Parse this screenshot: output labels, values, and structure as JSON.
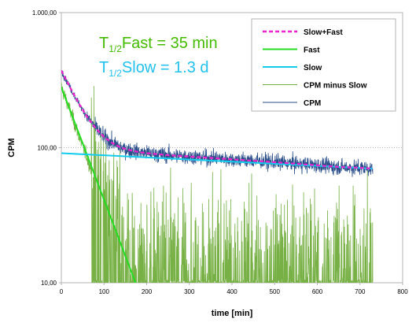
{
  "chart_data": {
    "type": "line",
    "xlabel": "time [min]",
    "ylabel": "CPM",
    "xlim": [
      0,
      800
    ],
    "ylim": [
      10,
      1000
    ],
    "y_scale": "log",
    "x_ticks": [
      "0",
      "100",
      "200",
      "300",
      "400",
      "500",
      "600",
      "700",
      "800"
    ],
    "y_ticks": [
      {
        "value": 10,
        "label": "10,00"
      },
      {
        "value": 100,
        "label": "100,00"
      },
      {
        "value": 1000,
        "label": "1.000,00"
      }
    ],
    "horizontal_gridlines": [
      100,
      1000
    ],
    "legend_position": "top-right",
    "annotations": [
      {
        "base": "T",
        "sub": "1/2",
        "rest": "Fast = 35 min",
        "color": "#44bb00"
      },
      {
        "base": "T",
        "sub": "1/2",
        "rest": "Slow = 1.3 d",
        "color": "#22c1ee"
      }
    ],
    "series": [
      {
        "name": "Slow+Fast",
        "color": "#ee22cc",
        "style": "dashed",
        "x": [
          0,
          20,
          40,
          60,
          80,
          100,
          120,
          140,
          160,
          180,
          200,
          250,
          300,
          350,
          400,
          450,
          500,
          550,
          600,
          650,
          700,
          730
        ],
        "y": [
          373,
          281,
          215,
          170,
          140,
          120,
          108,
          100,
          96,
          93,
          91,
          88,
          86,
          84,
          82,
          80,
          78,
          76,
          74,
          72,
          71,
          70
        ]
      },
      {
        "name": "Fast",
        "color": "#22dd22",
        "style": "solid",
        "x": [
          0,
          175
        ],
        "y": [
          280,
          9.8
        ]
      },
      {
        "name": "Slow",
        "color": "#11ccee",
        "style": "solid",
        "x": [
          0,
          730
        ],
        "y": [
          91,
          70
        ]
      },
      {
        "name": "CPM minus Slow",
        "color": "#77b044",
        "style": "noisy",
        "x": [
          0,
          20,
          40,
          60,
          80,
          100,
          120,
          140,
          160,
          180,
          200,
          300,
          400,
          500,
          600,
          700,
          730
        ],
        "y": [
          282,
          190,
          125,
          85,
          55,
          35,
          24,
          18,
          14,
          12,
          11,
          11,
          11,
          11,
          11,
          11,
          11
        ]
      },
      {
        "name": "CPM",
        "color": "#2a4e8a",
        "style": "noisy",
        "x": [
          0,
          20,
          40,
          60,
          80,
          100,
          120,
          140,
          160,
          180,
          200,
          250,
          300,
          350,
          400,
          450,
          500,
          550,
          600,
          650,
          700,
          730
        ],
        "y": [
          373,
          281,
          215,
          170,
          140,
          120,
          108,
          100,
          96,
          93,
          91,
          88,
          86,
          84,
          82,
          80,
          78,
          76,
          74,
          72,
          71,
          70
        ]
      }
    ]
  }
}
